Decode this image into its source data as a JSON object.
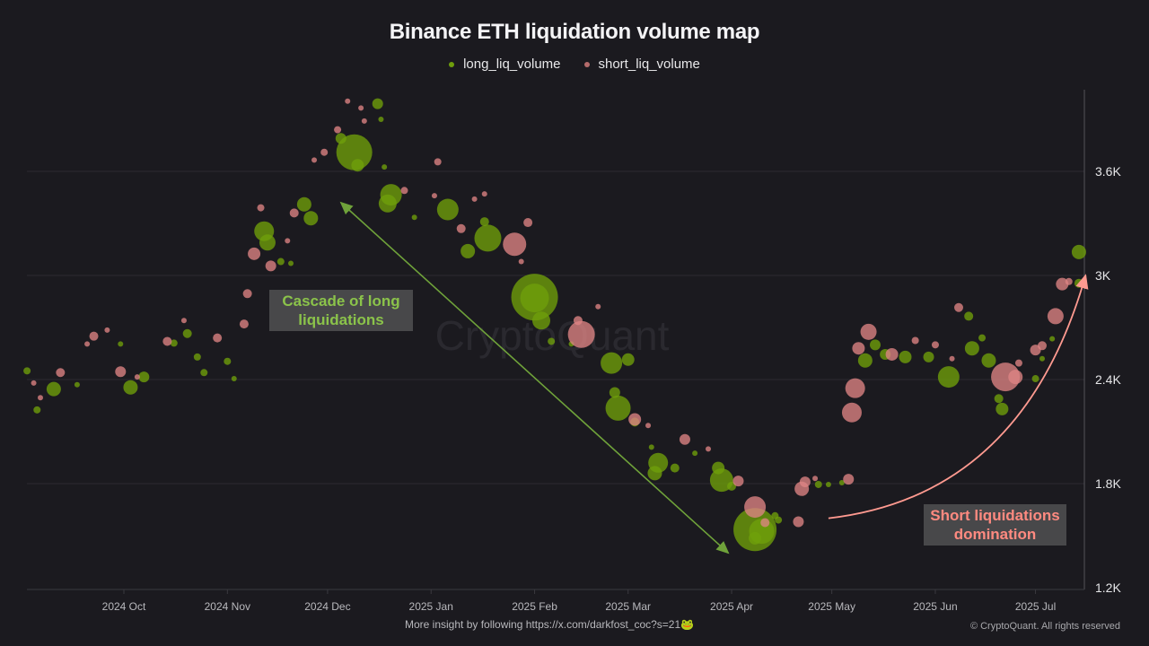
{
  "chart_data": {
    "type": "scatter",
    "title": "Binance ETH liquidation volume map",
    "legend_position": "top",
    "grid": true,
    "y_axis_side": "right",
    "ylim": [
      1200,
      4100
    ],
    "yticks": [
      {
        "v": 1200,
        "label": "1.2K"
      },
      {
        "v": 1800,
        "label": "1.8K"
      },
      {
        "v": 2400,
        "label": "2.4K"
      },
      {
        "v": 3000,
        "label": "3K"
      },
      {
        "v": 3600,
        "label": "3.6K"
      }
    ],
    "xlim": [
      "2024-09-02",
      "2025-07-16"
    ],
    "xticks": [
      {
        "d": "2024-10-01",
        "label": "2024 Oct"
      },
      {
        "d": "2024-11-01",
        "label": "2024 Nov"
      },
      {
        "d": "2024-12-01",
        "label": "2024 Dec"
      },
      {
        "d": "2025-01-01",
        "label": "2025 Jan"
      },
      {
        "d": "2025-02-01",
        "label": "2025 Feb"
      },
      {
        "d": "2025-03-01",
        "label": "2025 Mar"
      },
      {
        "d": "2025-04-01",
        "label": "2025 Apr"
      },
      {
        "d": "2025-05-01",
        "label": "2025 May"
      },
      {
        "d": "2025-06-01",
        "label": "2025 Jun"
      },
      {
        "d": "2025-07-01",
        "label": "2025 Jul"
      }
    ],
    "point_fields": [
      "date",
      "price",
      "relative_volume"
    ],
    "series": [
      {
        "name": "long_liq_volume",
        "color": "#6f9e0c",
        "points": [
          [
            "2024-09-02",
            2450,
            16
          ],
          [
            "2024-09-05",
            2225,
            16
          ],
          [
            "2024-09-10",
            2345,
            64
          ],
          [
            "2024-09-17",
            2370,
            9
          ],
          [
            "2024-09-30",
            2605,
            9
          ],
          [
            "2024-10-03",
            2355,
            64
          ],
          [
            "2024-10-07",
            2415,
            36
          ],
          [
            "2024-10-16",
            2610,
            16
          ],
          [
            "2024-10-20",
            2665,
            25
          ],
          [
            "2024-10-23",
            2530,
            16
          ],
          [
            "2024-10-25",
            2440,
            16
          ],
          [
            "2024-11-01",
            2505,
            16
          ],
          [
            "2024-11-03",
            2405,
            9
          ],
          [
            "2024-11-12",
            3255,
            121
          ],
          [
            "2024-11-13",
            3190,
            81
          ],
          [
            "2024-11-17",
            3080,
            16
          ],
          [
            "2024-11-20",
            3070,
            9
          ],
          [
            "2024-11-24",
            3410,
            64
          ],
          [
            "2024-11-26",
            3330,
            64
          ],
          [
            "2024-12-05",
            3790,
            36
          ],
          [
            "2024-12-09",
            3710,
            400
          ],
          [
            "2024-12-10",
            3635,
            49
          ],
          [
            "2024-12-16",
            3990,
            36
          ],
          [
            "2024-12-17",
            3900,
            9
          ],
          [
            "2024-12-18",
            3625,
            9
          ],
          [
            "2024-12-19",
            3415,
            100
          ],
          [
            "2024-12-20",
            3465,
            144
          ],
          [
            "2024-12-27",
            3335,
            9
          ],
          [
            "2025-01-06",
            3380,
            144
          ],
          [
            "2025-01-12",
            3140,
            64
          ],
          [
            "2025-01-17",
            3310,
            25
          ],
          [
            "2025-01-18",
            3215,
            225
          ],
          [
            "2025-02-01",
            2875,
            676
          ],
          [
            "2025-02-01",
            2870,
            256
          ],
          [
            "2025-02-03",
            2740,
            100
          ],
          [
            "2025-02-06",
            2620,
            16
          ],
          [
            "2025-02-12",
            2605,
            9
          ],
          [
            "2025-02-24",
            2495,
            144
          ],
          [
            "2025-02-25",
            2325,
            36
          ],
          [
            "2025-02-26",
            2235,
            196
          ],
          [
            "2025-03-01",
            2515,
            49
          ],
          [
            "2025-03-03",
            2155,
            25
          ],
          [
            "2025-03-08",
            2010,
            9
          ],
          [
            "2025-03-09",
            1860,
            64
          ],
          [
            "2025-03-10",
            1920,
            121
          ],
          [
            "2025-03-15",
            1890,
            25
          ],
          [
            "2025-03-21",
            1975,
            9
          ],
          [
            "2025-03-28",
            1890,
            49
          ],
          [
            "2025-03-29",
            1820,
            169
          ],
          [
            "2025-04-01",
            1785,
            25
          ],
          [
            "2025-04-08",
            1535,
            576
          ],
          [
            "2025-04-08",
            1485,
            49
          ],
          [
            "2025-04-10",
            1525,
            196
          ],
          [
            "2025-04-14",
            1615,
            16
          ],
          [
            "2025-04-15",
            1590,
            16
          ],
          [
            "2025-04-27",
            1795,
            16
          ],
          [
            "2025-04-30",
            1795,
            9
          ],
          [
            "2025-05-04",
            1805,
            9
          ],
          [
            "2025-05-11",
            2510,
            64
          ],
          [
            "2025-05-14",
            2600,
            36
          ],
          [
            "2025-05-17",
            2545,
            36
          ],
          [
            "2025-05-23",
            2530,
            49
          ],
          [
            "2025-05-30",
            2530,
            36
          ],
          [
            "2025-06-05",
            2415,
            144
          ],
          [
            "2025-06-11",
            2765,
            25
          ],
          [
            "2025-06-12",
            2580,
            64
          ],
          [
            "2025-06-15",
            2640,
            16
          ],
          [
            "2025-06-17",
            2510,
            64
          ],
          [
            "2025-06-20",
            2290,
            25
          ],
          [
            "2025-06-21",
            2230,
            49
          ],
          [
            "2025-07-01",
            2405,
            16
          ],
          [
            "2025-07-03",
            2520,
            9
          ],
          [
            "2025-07-06",
            2635,
            9
          ],
          [
            "2025-07-14",
            2955,
            25
          ],
          [
            "2025-07-14",
            3135,
            64
          ]
        ]
      },
      {
        "name": "short_liq_volume",
        "color": "#d98585",
        "points": [
          [
            "2024-09-04",
            2380,
            9
          ],
          [
            "2024-09-06",
            2295,
            9
          ],
          [
            "2024-09-12",
            2440,
            25
          ],
          [
            "2024-09-20",
            2605,
            9
          ],
          [
            "2024-09-22",
            2650,
            25
          ],
          [
            "2024-09-26",
            2685,
            9
          ],
          [
            "2024-09-30",
            2445,
            36
          ],
          [
            "2024-10-05",
            2415,
            9
          ],
          [
            "2024-10-14",
            2620,
            25
          ],
          [
            "2024-10-19",
            2740,
            9
          ],
          [
            "2024-10-29",
            2640,
            25
          ],
          [
            "2024-11-06",
            2720,
            25
          ],
          [
            "2024-11-07",
            2895,
            25
          ],
          [
            "2024-11-09",
            3125,
            49
          ],
          [
            "2024-11-11",
            3390,
            16
          ],
          [
            "2024-11-14",
            3055,
            36
          ],
          [
            "2024-11-19",
            3200,
            9
          ],
          [
            "2024-11-21",
            3360,
            25
          ],
          [
            "2024-11-27",
            3665,
            9
          ],
          [
            "2024-11-30",
            3710,
            16
          ],
          [
            "2024-12-04",
            3840,
            16
          ],
          [
            "2024-12-07",
            4005,
            9
          ],
          [
            "2024-12-11",
            3965,
            9
          ],
          [
            "2024-12-12",
            3890,
            9
          ],
          [
            "2024-12-24",
            3490,
            16
          ],
          [
            "2025-01-02",
            3460,
            9
          ],
          [
            "2025-01-03",
            3655,
            16
          ],
          [
            "2025-01-10",
            3270,
            25
          ],
          [
            "2025-01-14",
            3440,
            9
          ],
          [
            "2025-01-17",
            3470,
            9
          ],
          [
            "2025-01-26",
            3180,
            169
          ],
          [
            "2025-01-28",
            3080,
            9
          ],
          [
            "2025-01-30",
            3305,
            25
          ],
          [
            "2025-02-14",
            2740,
            25
          ],
          [
            "2025-02-15",
            2660,
            225
          ],
          [
            "2025-02-20",
            2820,
            9
          ],
          [
            "2025-03-03",
            2170,
            49
          ],
          [
            "2025-03-07",
            2135,
            9
          ],
          [
            "2025-03-18",
            2055,
            36
          ],
          [
            "2025-03-25",
            2000,
            9
          ],
          [
            "2025-04-03",
            1815,
            36
          ],
          [
            "2025-04-08",
            1665,
            144
          ],
          [
            "2025-04-11",
            1575,
            25
          ],
          [
            "2025-04-21",
            1580,
            36
          ],
          [
            "2025-04-22",
            1770,
            64
          ],
          [
            "2025-04-23",
            1810,
            36
          ],
          [
            "2025-04-26",
            1830,
            9
          ],
          [
            "2025-05-06",
            1825,
            36
          ],
          [
            "2025-05-07",
            2210,
            121
          ],
          [
            "2025-05-08",
            2350,
            121
          ],
          [
            "2025-05-09",
            2580,
            49
          ],
          [
            "2025-05-12",
            2675,
            81
          ],
          [
            "2025-05-19",
            2545,
            49
          ],
          [
            "2025-05-26",
            2625,
            16
          ],
          [
            "2025-06-01",
            2600,
            16
          ],
          [
            "2025-06-06",
            2520,
            9
          ],
          [
            "2025-06-08",
            2815,
            25
          ],
          [
            "2025-06-22",
            2415,
            256
          ],
          [
            "2025-06-25",
            2415,
            64
          ],
          [
            "2025-06-26",
            2495,
            16
          ],
          [
            "2025-07-01",
            2570,
            36
          ],
          [
            "2025-07-03",
            2595,
            25
          ],
          [
            "2025-07-07",
            2765,
            81
          ],
          [
            "2025-07-09",
            2950,
            49
          ],
          [
            "2025-07-11",
            2965,
            16
          ]
        ]
      }
    ],
    "annotations": [
      {
        "text": "Cascade of long liquidations",
        "color": "#8bc34a",
        "from": [
          "2024-12-05",
          3420
        ],
        "to": [
          "2025-03-31",
          1400
        ],
        "arrow": "double"
      },
      {
        "text": "Short liquidations domination",
        "color": "#ff8a80",
        "from": [
          "2025-04-30",
          1600
        ],
        "to": [
          "2025-07-16",
          3000
        ],
        "arrow": "curved"
      }
    ],
    "watermark": "CryptoQuant"
  },
  "footer": {
    "text": "More insight by following https://x.com/darkfost_coc?s=21🐸",
    "copyright": "© CryptoQuant. All rights reserved"
  }
}
